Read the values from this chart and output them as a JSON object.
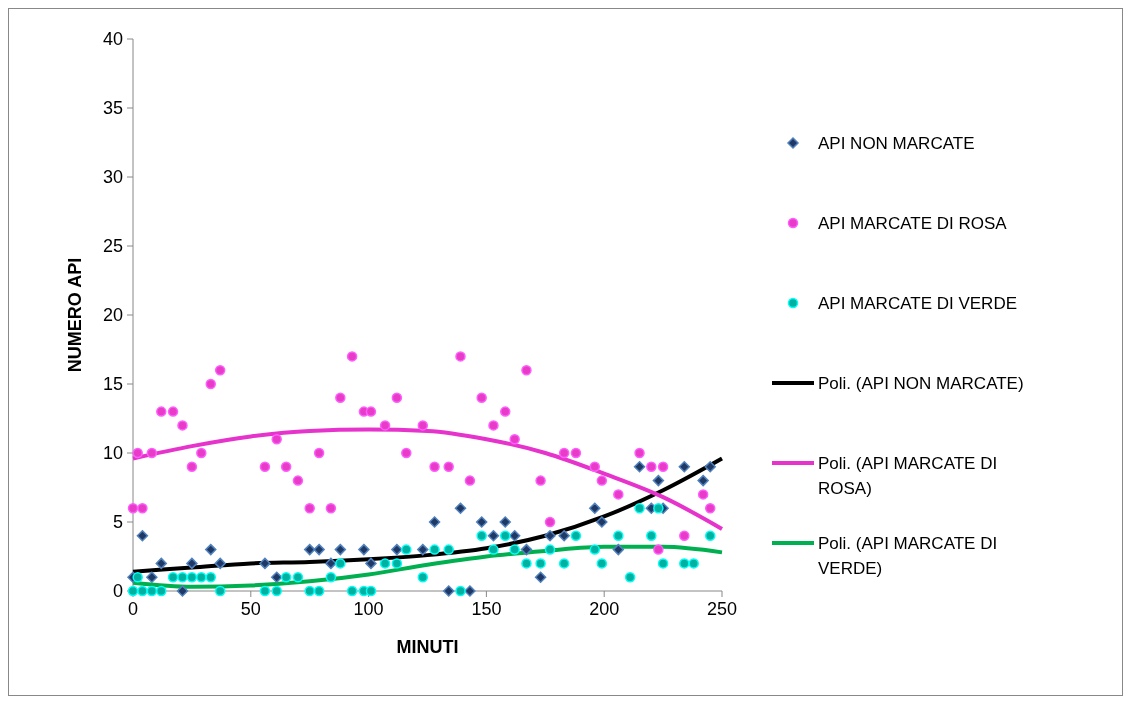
{
  "chart_data": {
    "type": "scatter",
    "xlabel": "MINUTI",
    "ylabel": "NUMERO API",
    "xlim": [
      0,
      250
    ],
    "xticks": [
      0,
      50,
      100,
      150,
      200,
      250
    ],
    "ylim": [
      0,
      40
    ],
    "yticks": [
      0,
      5,
      10,
      15,
      20,
      25,
      30,
      35,
      40
    ],
    "grid": false,
    "legend": "right",
    "series": [
      {
        "name": "API NON MARCATE",
        "marker": "diamond",
        "color": "#1f3864",
        "x": [
          0,
          4,
          8,
          12,
          21,
          25,
          33,
          37,
          56,
          61,
          75,
          79,
          84,
          88,
          98,
          101,
          112,
          123,
          128,
          134,
          139,
          143,
          148,
          153,
          158,
          162,
          167,
          173,
          177,
          183,
          196,
          199,
          206,
          215,
          220,
          223,
          225,
          234,
          242,
          245
        ],
        "values": [
          1,
          4,
          1,
          2,
          0,
          2,
          3,
          2,
          2,
          1,
          3,
          3,
          2,
          3,
          3,
          2,
          3,
          3,
          5,
          0,
          6,
          0,
          5,
          4,
          5,
          4,
          3,
          1,
          4,
          4,
          6,
          5,
          3,
          9,
          6,
          8,
          6,
          9,
          8,
          9
        ]
      },
      {
        "name": "API MARCATE DI ROSA",
        "marker": "circle",
        "color": "#e83cc8",
        "x": [
          0,
          2,
          4,
          8,
          12,
          17,
          21,
          25,
          29,
          33,
          37,
          56,
          61,
          65,
          70,
          75,
          79,
          84,
          88,
          93,
          98,
          101,
          107,
          112,
          116,
          123,
          128,
          134,
          139,
          143,
          148,
          153,
          158,
          162,
          167,
          173,
          177,
          183,
          188,
          196,
          199,
          206,
          215,
          220,
          223,
          225,
          234,
          242,
          245
        ],
        "values": [
          6,
          10,
          6,
          10,
          13,
          13,
          12,
          9,
          10,
          15,
          16,
          9,
          11,
          9,
          8,
          6,
          10,
          6,
          14,
          17,
          13,
          13,
          12,
          14,
          10,
          12,
          9,
          9,
          17,
          8,
          14,
          12,
          13,
          11,
          16,
          8,
          5,
          10,
          10,
          9,
          8,
          7,
          10,
          9,
          3,
          9,
          4,
          7,
          6
        ]
      },
      {
        "name": "API MARCATE DI VERDE",
        "marker": "circle",
        "color": "#00b0a0",
        "x": [
          0,
          2,
          4,
          8,
          12,
          17,
          21,
          25,
          29,
          33,
          37,
          56,
          61,
          65,
          70,
          75,
          79,
          84,
          88,
          93,
          98,
          101,
          107,
          112,
          116,
          123,
          128,
          134,
          139,
          148,
          153,
          158,
          162,
          167,
          173,
          177,
          183,
          188,
          196,
          199,
          206,
          211,
          215,
          220,
          223,
          225,
          234,
          238,
          245
        ],
        "values": [
          0,
          1,
          0,
          0,
          0,
          1,
          1,
          1,
          1,
          1,
          0,
          0,
          0,
          1,
          1,
          0,
          0,
          1,
          2,
          0,
          0,
          0,
          2,
          2,
          3,
          1,
          3,
          3,
          0,
          4,
          3,
          4,
          3,
          2,
          2,
          3,
          2,
          4,
          3,
          2,
          4,
          1,
          6,
          4,
          6,
          2,
          2,
          2,
          4
        ]
      },
      {
        "name": "Poli. (API NON MARCATE)",
        "type": "line",
        "color": "#000000",
        "x": [
          0,
          25,
          50,
          75,
          100,
          125,
          150,
          175,
          200,
          225,
          250
        ],
        "values": [
          1.4,
          1.7,
          2,
          2.1,
          2.3,
          2.6,
          3.1,
          4,
          5.4,
          7.3,
          9.6
        ]
      },
      {
        "name": "Poli. (API MARCATE DI ROSA)",
        "type": "line",
        "color": "#e633cc",
        "x": [
          0,
          25,
          50,
          75,
          100,
          125,
          150,
          175,
          200,
          225,
          250
        ],
        "values": [
          9.6,
          10.5,
          11.2,
          11.6,
          11.7,
          11.6,
          11,
          10,
          8.5,
          6.8,
          4.5
        ]
      },
      {
        "name": "Poli. (API MARCATE DI VERDE)",
        "type": "line",
        "color": "#00b050",
        "x": [
          0,
          25,
          50,
          75,
          100,
          125,
          150,
          175,
          200,
          225,
          250
        ],
        "values": [
          0.6,
          0.3,
          0.4,
          0.7,
          1.2,
          1.9,
          2.5,
          2.9,
          3.2,
          3.2,
          2.8
        ]
      }
    ]
  }
}
